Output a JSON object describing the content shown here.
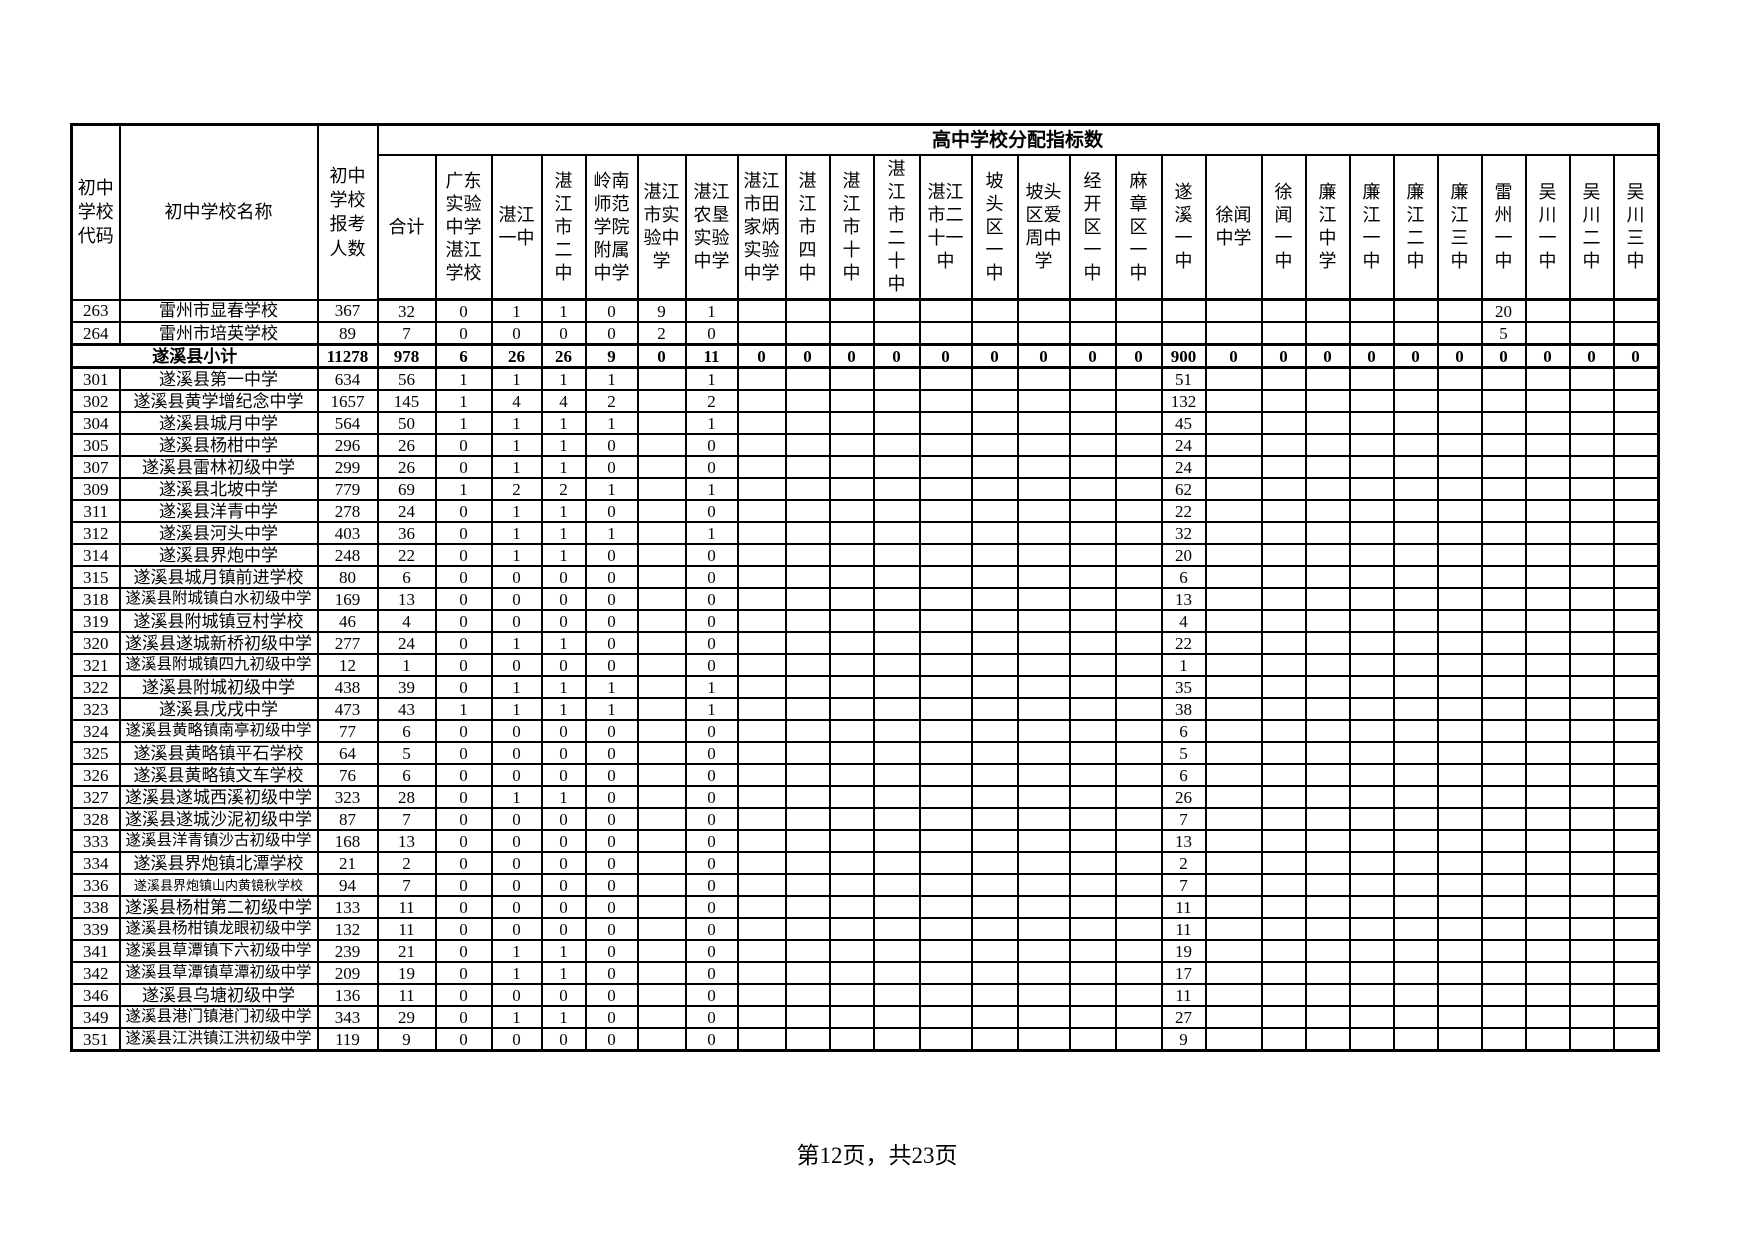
{
  "table": {
    "group_header": "高中学校分配指标数",
    "corner_headers": {
      "code": "初中学校代码",
      "name": "初中学校名称",
      "applicants": "初中学校报考人数",
      "total": "合计"
    },
    "school_columns": [
      "广东实验中学湛江学校",
      "湛江一中",
      "湛江市二中",
      "岭南师范学院附属中学",
      "湛江市实验中学",
      "湛江农垦实验中学",
      "湛江市田家炳实验中学",
      "湛江市四中",
      "湛江市十中",
      "湛江市二十中",
      "湛江市二十一中",
      "坡头区一中",
      "坡头区爱周中学",
      "经开区一中",
      "麻章区一中",
      "遂溪一中",
      "徐闻中学",
      "徐闻一中",
      "廉江中学",
      "廉江一中",
      "廉江二中",
      "廉江三中",
      "雷州一中",
      "吴川一中",
      "吴川二中",
      "吴川三中"
    ],
    "rows": [
      {
        "code": "263",
        "name": "雷州市显春学校",
        "applicants": "367",
        "total": "32",
        "subtotal": false,
        "values": [
          "0",
          "1",
          "1",
          "0",
          "9",
          "1",
          "",
          "",
          "",
          "",
          "",
          "",
          "",
          "",
          "",
          "",
          "",
          "",
          "",
          "",
          "",
          "",
          "20",
          "",
          "",
          ""
        ]
      },
      {
        "code": "264",
        "name": "雷州市培英学校",
        "applicants": "89",
        "total": "7",
        "subtotal": false,
        "values": [
          "0",
          "0",
          "0",
          "0",
          "2",
          "0",
          "",
          "",
          "",
          "",
          "",
          "",
          "",
          "",
          "",
          "",
          "",
          "",
          "",
          "",
          "",
          "",
          "5",
          "",
          "",
          ""
        ]
      },
      {
        "code": "",
        "name": "遂溪县小计",
        "applicants": "11278",
        "total": "978",
        "subtotal": true,
        "values": [
          "6",
          "26",
          "26",
          "9",
          "0",
          "11",
          "0",
          "0",
          "0",
          "0",
          "0",
          "0",
          "0",
          "0",
          "0",
          "900",
          "0",
          "0",
          "0",
          "0",
          "0",
          "0",
          "0",
          "0",
          "0",
          "0"
        ]
      },
      {
        "code": "301",
        "name": "遂溪县第一中学",
        "applicants": "634",
        "total": "56",
        "subtotal": false,
        "values": [
          "1",
          "1",
          "1",
          "1",
          "",
          "1",
          "",
          "",
          "",
          "",
          "",
          "",
          "",
          "",
          "",
          "51",
          "",
          "",
          "",
          "",
          "",
          "",
          "",
          "",
          "",
          ""
        ]
      },
      {
        "code": "302",
        "name": "遂溪县黄学增纪念中学",
        "applicants": "1657",
        "total": "145",
        "subtotal": false,
        "values": [
          "1",
          "4",
          "4",
          "2",
          "",
          "2",
          "",
          "",
          "",
          "",
          "",
          "",
          "",
          "",
          "",
          "132",
          "",
          "",
          "",
          "",
          "",
          "",
          "",
          "",
          "",
          ""
        ]
      },
      {
        "code": "304",
        "name": "遂溪县城月中学",
        "applicants": "564",
        "total": "50",
        "subtotal": false,
        "values": [
          "1",
          "1",
          "1",
          "1",
          "",
          "1",
          "",
          "",
          "",
          "",
          "",
          "",
          "",
          "",
          "",
          "45",
          "",
          "",
          "",
          "",
          "",
          "",
          "",
          "",
          "",
          ""
        ]
      },
      {
        "code": "305",
        "name": "遂溪县杨柑中学",
        "applicants": "296",
        "total": "26",
        "subtotal": false,
        "values": [
          "0",
          "1",
          "1",
          "0",
          "",
          "0",
          "",
          "",
          "",
          "",
          "",
          "",
          "",
          "",
          "",
          "24",
          "",
          "",
          "",
          "",
          "",
          "",
          "",
          "",
          "",
          ""
        ]
      },
      {
        "code": "307",
        "name": "遂溪县雷林初级中学",
        "applicants": "299",
        "total": "26",
        "subtotal": false,
        "values": [
          "0",
          "1",
          "1",
          "0",
          "",
          "0",
          "",
          "",
          "",
          "",
          "",
          "",
          "",
          "",
          "",
          "24",
          "",
          "",
          "",
          "",
          "",
          "",
          "",
          "",
          "",
          ""
        ]
      },
      {
        "code": "309",
        "name": "遂溪县北坡中学",
        "applicants": "779",
        "total": "69",
        "subtotal": false,
        "values": [
          "1",
          "2",
          "2",
          "1",
          "",
          "1",
          "",
          "",
          "",
          "",
          "",
          "",
          "",
          "",
          "",
          "62",
          "",
          "",
          "",
          "",
          "",
          "",
          "",
          "",
          "",
          ""
        ]
      },
      {
        "code": "311",
        "name": "遂溪县洋青中学",
        "applicants": "278",
        "total": "24",
        "subtotal": false,
        "values": [
          "0",
          "1",
          "1",
          "0",
          "",
          "0",
          "",
          "",
          "",
          "",
          "",
          "",
          "",
          "",
          "",
          "22",
          "",
          "",
          "",
          "",
          "",
          "",
          "",
          "",
          "",
          ""
        ]
      },
      {
        "code": "312",
        "name": "遂溪县河头中学",
        "applicants": "403",
        "total": "36",
        "subtotal": false,
        "values": [
          "0",
          "1",
          "1",
          "1",
          "",
          "1",
          "",
          "",
          "",
          "",
          "",
          "",
          "",
          "",
          "",
          "32",
          "",
          "",
          "",
          "",
          "",
          "",
          "",
          "",
          "",
          ""
        ]
      },
      {
        "code": "314",
        "name": "遂溪县界炮中学",
        "applicants": "248",
        "total": "22",
        "subtotal": false,
        "values": [
          "0",
          "1",
          "1",
          "0",
          "",
          "0",
          "",
          "",
          "",
          "",
          "",
          "",
          "",
          "",
          "",
          "20",
          "",
          "",
          "",
          "",
          "",
          "",
          "",
          "",
          "",
          ""
        ]
      },
      {
        "code": "315",
        "name": "遂溪县城月镇前进学校",
        "applicants": "80",
        "total": "6",
        "subtotal": false,
        "values": [
          "0",
          "0",
          "0",
          "0",
          "",
          "0",
          "",
          "",
          "",
          "",
          "",
          "",
          "",
          "",
          "",
          "6",
          "",
          "",
          "",
          "",
          "",
          "",
          "",
          "",
          "",
          ""
        ]
      },
      {
        "code": "318",
        "name": "遂溪县附城镇白水初级中学",
        "applicants": "169",
        "total": "13",
        "subtotal": false,
        "values": [
          "0",
          "0",
          "0",
          "0",
          "",
          "0",
          "",
          "",
          "",
          "",
          "",
          "",
          "",
          "",
          "",
          "13",
          "",
          "",
          "",
          "",
          "",
          "",
          "",
          "",
          "",
          ""
        ]
      },
      {
        "code": "319",
        "name": "遂溪县附城镇豆村学校",
        "applicants": "46",
        "total": "4",
        "subtotal": false,
        "values": [
          "0",
          "0",
          "0",
          "0",
          "",
          "0",
          "",
          "",
          "",
          "",
          "",
          "",
          "",
          "",
          "",
          "4",
          "",
          "",
          "",
          "",
          "",
          "",
          "",
          "",
          "",
          ""
        ]
      },
      {
        "code": "320",
        "name": "遂溪县遂城新桥初级中学",
        "applicants": "277",
        "total": "24",
        "subtotal": false,
        "values": [
          "0",
          "1",
          "1",
          "0",
          "",
          "0",
          "",
          "",
          "",
          "",
          "",
          "",
          "",
          "",
          "",
          "22",
          "",
          "",
          "",
          "",
          "",
          "",
          "",
          "",
          "",
          ""
        ]
      },
      {
        "code": "321",
        "name": "遂溪县附城镇四九初级中学",
        "applicants": "12",
        "total": "1",
        "subtotal": false,
        "values": [
          "0",
          "0",
          "0",
          "0",
          "",
          "0",
          "",
          "",
          "",
          "",
          "",
          "",
          "",
          "",
          "",
          "1",
          "",
          "",
          "",
          "",
          "",
          "",
          "",
          "",
          "",
          ""
        ]
      },
      {
        "code": "322",
        "name": "遂溪县附城初级中学",
        "applicants": "438",
        "total": "39",
        "subtotal": false,
        "values": [
          "0",
          "1",
          "1",
          "1",
          "",
          "1",
          "",
          "",
          "",
          "",
          "",
          "",
          "",
          "",
          "",
          "35",
          "",
          "",
          "",
          "",
          "",
          "",
          "",
          "",
          "",
          ""
        ]
      },
      {
        "code": "323",
        "name": "遂溪县戊戌中学",
        "applicants": "473",
        "total": "43",
        "subtotal": false,
        "values": [
          "1",
          "1",
          "1",
          "1",
          "",
          "1",
          "",
          "",
          "",
          "",
          "",
          "",
          "",
          "",
          "",
          "38",
          "",
          "",
          "",
          "",
          "",
          "",
          "",
          "",
          "",
          ""
        ]
      },
      {
        "code": "324",
        "name": "遂溪县黄略镇南亭初级中学",
        "applicants": "77",
        "total": "6",
        "subtotal": false,
        "values": [
          "0",
          "0",
          "0",
          "0",
          "",
          "0",
          "",
          "",
          "",
          "",
          "",
          "",
          "",
          "",
          "",
          "6",
          "",
          "",
          "",
          "",
          "",
          "",
          "",
          "",
          "",
          ""
        ]
      },
      {
        "code": "325",
        "name": "遂溪县黄略镇平石学校",
        "applicants": "64",
        "total": "5",
        "subtotal": false,
        "values": [
          "0",
          "0",
          "0",
          "0",
          "",
          "0",
          "",
          "",
          "",
          "",
          "",
          "",
          "",
          "",
          "",
          "5",
          "",
          "",
          "",
          "",
          "",
          "",
          "",
          "",
          "",
          ""
        ]
      },
      {
        "code": "326",
        "name": "遂溪县黄略镇文车学校",
        "applicants": "76",
        "total": "6",
        "subtotal": false,
        "values": [
          "0",
          "0",
          "0",
          "0",
          "",
          "0",
          "",
          "",
          "",
          "",
          "",
          "",
          "",
          "",
          "",
          "6",
          "",
          "",
          "",
          "",
          "",
          "",
          "",
          "",
          "",
          ""
        ]
      },
      {
        "code": "327",
        "name": "遂溪县遂城西溪初级中学",
        "applicants": "323",
        "total": "28",
        "subtotal": false,
        "values": [
          "0",
          "1",
          "1",
          "0",
          "",
          "0",
          "",
          "",
          "",
          "",
          "",
          "",
          "",
          "",
          "",
          "26",
          "",
          "",
          "",
          "",
          "",
          "",
          "",
          "",
          "",
          ""
        ]
      },
      {
        "code": "328",
        "name": "遂溪县遂城沙泥初级中学",
        "applicants": "87",
        "total": "7",
        "subtotal": false,
        "values": [
          "0",
          "0",
          "0",
          "0",
          "",
          "0",
          "",
          "",
          "",
          "",
          "",
          "",
          "",
          "",
          "",
          "7",
          "",
          "",
          "",
          "",
          "",
          "",
          "",
          "",
          "",
          ""
        ]
      },
      {
        "code": "333",
        "name": "遂溪县洋青镇沙古初级中学",
        "applicants": "168",
        "total": "13",
        "subtotal": false,
        "values": [
          "0",
          "0",
          "0",
          "0",
          "",
          "0",
          "",
          "",
          "",
          "",
          "",
          "",
          "",
          "",
          "",
          "13",
          "",
          "",
          "",
          "",
          "",
          "",
          "",
          "",
          "",
          ""
        ]
      },
      {
        "code": "334",
        "name": "遂溪县界炮镇北潭学校",
        "applicants": "21",
        "total": "2",
        "subtotal": false,
        "values": [
          "0",
          "0",
          "0",
          "0",
          "",
          "0",
          "",
          "",
          "",
          "",
          "",
          "",
          "",
          "",
          "",
          "2",
          "",
          "",
          "",
          "",
          "",
          "",
          "",
          "",
          "",
          ""
        ]
      },
      {
        "code": "336",
        "name": "遂溪县界炮镇山内黄镜秋学校",
        "applicants": "94",
        "total": "7",
        "subtotal": false,
        "values": [
          "0",
          "0",
          "0",
          "0",
          "",
          "0",
          "",
          "",
          "",
          "",
          "",
          "",
          "",
          "",
          "",
          "7",
          "",
          "",
          "",
          "",
          "",
          "",
          "",
          "",
          "",
          ""
        ]
      },
      {
        "code": "338",
        "name": "遂溪县杨柑第二初级中学",
        "applicants": "133",
        "total": "11",
        "subtotal": false,
        "values": [
          "0",
          "0",
          "0",
          "0",
          "",
          "0",
          "",
          "",
          "",
          "",
          "",
          "",
          "",
          "",
          "",
          "11",
          "",
          "",
          "",
          "",
          "",
          "",
          "",
          "",
          "",
          ""
        ]
      },
      {
        "code": "339",
        "name": "遂溪县杨柑镇龙眼初级中学",
        "applicants": "132",
        "total": "11",
        "subtotal": false,
        "values": [
          "0",
          "0",
          "0",
          "0",
          "",
          "0",
          "",
          "",
          "",
          "",
          "",
          "",
          "",
          "",
          "",
          "11",
          "",
          "",
          "",
          "",
          "",
          "",
          "",
          "",
          "",
          ""
        ]
      },
      {
        "code": "341",
        "name": "遂溪县草潭镇下六初级中学",
        "applicants": "239",
        "total": "21",
        "subtotal": false,
        "values": [
          "0",
          "1",
          "1",
          "0",
          "",
          "0",
          "",
          "",
          "",
          "",
          "",
          "",
          "",
          "",
          "",
          "19",
          "",
          "",
          "",
          "",
          "",
          "",
          "",
          "",
          "",
          ""
        ]
      },
      {
        "code": "342",
        "name": "遂溪县草潭镇草潭初级中学",
        "applicants": "209",
        "total": "19",
        "subtotal": false,
        "values": [
          "0",
          "1",
          "1",
          "0",
          "",
          "0",
          "",
          "",
          "",
          "",
          "",
          "",
          "",
          "",
          "",
          "17",
          "",
          "",
          "",
          "",
          "",
          "",
          "",
          "",
          "",
          ""
        ]
      },
      {
        "code": "346",
        "name": "遂溪县乌塘初级中学",
        "applicants": "136",
        "total": "11",
        "subtotal": false,
        "values": [
          "0",
          "0",
          "0",
          "0",
          "",
          "0",
          "",
          "",
          "",
          "",
          "",
          "",
          "",
          "",
          "",
          "11",
          "",
          "",
          "",
          "",
          "",
          "",
          "",
          "",
          "",
          ""
        ]
      },
      {
        "code": "349",
        "name": "遂溪县港门镇港门初级中学",
        "applicants": "343",
        "total": "29",
        "subtotal": false,
        "values": [
          "0",
          "1",
          "1",
          "0",
          "",
          "0",
          "",
          "",
          "",
          "",
          "",
          "",
          "",
          "",
          "",
          "27",
          "",
          "",
          "",
          "",
          "",
          "",
          "",
          "",
          "",
          ""
        ]
      },
      {
        "code": "351",
        "name": "遂溪县江洪镇江洪初级中学",
        "applicants": "119",
        "total": "9",
        "subtotal": false,
        "values": [
          "0",
          "0",
          "0",
          "0",
          "",
          "0",
          "",
          "",
          "",
          "",
          "",
          "",
          "",
          "",
          "",
          "9",
          "",
          "",
          "",
          "",
          "",
          "",
          "",
          "",
          "",
          ""
        ]
      }
    ]
  },
  "footer": {
    "page_text": "第12页，共23页"
  },
  "colors": {
    "border": "#000000",
    "text": "#000000",
    "background": "#ffffff"
  }
}
